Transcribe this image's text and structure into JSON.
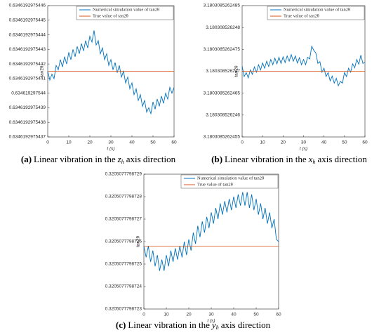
{
  "chart_data": [
    {
      "type": "line",
      "caption": {
        "tag": "(a)",
        "text": "Linear vibration in the",
        "var": "z",
        "sub": "h",
        "rest": "axis direction"
      },
      "xlabel": "t (s)",
      "ylabel": "tan2θ",
      "xlim": [
        0,
        60
      ],
      "xticks": [
        0,
        10,
        20,
        30,
        40,
        50,
        60
      ],
      "ylim": [
        0.6346192975437,
        0.6346192975446
      ],
      "yticks": [
        0.6346192975437,
        0.6346192975438,
        0.6346192975439,
        0.634619297544,
        0.6346192975441,
        0.6346192975442,
        0.6346192975443,
        0.6346192975444,
        0.6346192975445,
        0.6346192975446
      ],
      "legend": "upper right",
      "series": [
        {
          "name": "Numerical simulation value of tan2θ",
          "color": "#0072bd",
          "x": [
            0,
            1,
            2,
            3,
            4,
            5,
            6,
            7,
            8,
            9,
            10,
            11,
            12,
            13,
            14,
            15,
            16,
            17,
            18,
            19,
            20,
            21,
            22,
            23,
            24,
            25,
            26,
            27,
            28,
            29,
            30,
            31,
            32,
            33,
            34,
            35,
            36,
            37,
            38,
            39,
            40,
            41,
            42,
            43,
            44,
            45,
            46,
            47,
            48,
            49,
            50,
            51,
            52,
            53,
            54,
            55,
            56,
            57,
            58,
            59,
            60
          ],
          "values": [
            0.63461929754415,
            0.63461929754409,
            0.63461929754413,
            0.6346192975441,
            0.63461929754419,
            0.63461929754416,
            0.63461929754423,
            0.63461929754418,
            0.63461929754425,
            0.6346192975442,
            0.63461929754428,
            0.63461929754423,
            0.6346192975443,
            0.63461929754425,
            0.63461929754432,
            0.63461929754427,
            0.63461929754434,
            0.63461929754429,
            0.63461929754436,
            0.63461929754431,
            0.63461929754439,
            0.63461929754435,
            0.63461929754443,
            0.63461929754433,
            0.63461929754436,
            0.63461929754427,
            0.63461929754431,
            0.63461929754423,
            0.63461929754427,
            0.63461929754419,
            0.63461929754423,
            0.63461929754416,
            0.63461929754421,
            0.63461929754414,
            0.63461929754419,
            0.63461929754411,
            0.63461929754415,
            0.63461929754407,
            0.63461929754411,
            0.63461929754403,
            0.63461929754407,
            0.63461929754399,
            0.63461929754403,
            0.63461929754395,
            0.63461929754399,
            0.63461929754391,
            0.63461929754395,
            0.63461929754387,
            0.6346192975439,
            0.63461929754386,
            0.63461929754394,
            0.63461929754389,
            0.63461929754396,
            0.63461929754391,
            0.63461929754398,
            0.63461929754393,
            0.634619297544,
            0.63461929754396,
            0.63461929754404,
            0.634619297544,
            0.63461929754404
          ]
        },
        {
          "name": "True value of tan2θ",
          "color": "#d95319",
          "x": [
            0,
            60
          ],
          "values": [
            0.63461929754415,
            0.63461929754415
          ]
        }
      ]
    },
    {
      "type": "line",
      "caption": {
        "tag": "(b)",
        "text": "Linear vibration in the",
        "var": "x",
        "sub": "h",
        "rest": "axis direction"
      },
      "xlabel": "t (s)",
      "ylabel": "tan2θ",
      "xlim": [
        0,
        60
      ],
      "xticks": [
        0,
        10,
        20,
        30,
        40,
        50,
        60
      ],
      "ylim": [
        3.1803085262455,
        3.1803085262485
      ],
      "yticks": [
        3.1803085262455,
        3.180308526246,
        3.1803085262465,
        3.180308526247,
        3.1803085262475,
        3.180308526248,
        3.1803085262485
      ],
      "legend": "upper right",
      "series": [
        {
          "name": "Numerical simulation value of tan2θ",
          "color": "#0072bd",
          "x": [
            0,
            1,
            2,
            3,
            4,
            5,
            6,
            7,
            8,
            9,
            10,
            11,
            12,
            13,
            14,
            15,
            16,
            17,
            18,
            19,
            20,
            21,
            22,
            23,
            24,
            25,
            26,
            27,
            28,
            29,
            30,
            31,
            32,
            33,
            34,
            35,
            36,
            37,
            38,
            39,
            40,
            41,
            42,
            43,
            44,
            45,
            46,
            47,
            48,
            49,
            50,
            51,
            52,
            53,
            54,
            55,
            56,
            57,
            58,
            59,
            60
          ],
          "values": [
            3.18030852624712,
            3.18030852624688,
            3.18030852624697,
            3.18030852624685,
            3.18030852624703,
            3.18030852624693,
            3.1803085262471,
            3.18030852624698,
            3.18030852624715,
            3.18030852624703,
            3.18030852624719,
            3.18030852624707,
            3.18030852624723,
            3.18030852624711,
            3.18030852624727,
            3.18030852624715,
            3.1803085262473,
            3.18030852624717,
            3.18030852624732,
            3.18030852624718,
            3.18030852624733,
            3.1803085262472,
            3.18030852624735,
            3.18030852624723,
            3.18030852624738,
            3.18030852624723,
            3.18030852624735,
            3.18030852624719,
            3.18030852624731,
            3.18030852624715,
            3.18030852624727,
            3.18030852624715,
            3.18030852624732,
            3.18030852624728,
            3.18030852624757,
            3.18030852624748,
            3.18030852624742,
            3.18030852624718,
            3.18030852624722,
            3.18030852624698,
            3.18030852624707,
            3.18030852624688,
            3.18030852624697,
            3.18030852624678,
            3.18030852624689,
            3.18030852624673,
            3.18030852624684,
            3.18030852624667,
            3.18030852624677,
            3.18030852624673,
            3.18030852624697,
            3.18030852624688,
            3.18030852624707,
            3.18030852624698,
            3.18030852624717,
            3.18030852624708,
            3.18030852624727,
            3.18030852624716,
            3.18030852624737,
            3.18030852624718,
            3.1803085262472
          ]
        },
        {
          "name": "True value of tan2θ",
          "color": "#d95319",
          "x": [
            0,
            60
          ],
          "values": [
            3.180308526247,
            3.180308526247
          ]
        }
      ]
    },
    {
      "type": "line",
      "caption": {
        "tag": "(c)",
        "text": "Linear vibration in the",
        "var": "y",
        "sub": "h",
        "rest": "axis direction"
      },
      "xlabel": "t (s)",
      "ylabel": "tan2θ",
      "xlim": [
        0,
        60
      ],
      "xticks": [
        0,
        10,
        20,
        30,
        40,
        50,
        60
      ],
      "ylim": [
        0.3205077798723,
        0.3205077798729
      ],
      "yticks": [
        0.3205077798723,
        0.3205077798724,
        0.3205077798725,
        0.3205077798726,
        0.3205077798727,
        0.3205077798728,
        0.3205077798729
      ],
      "legend": "upper right",
      "series": [
        {
          "name": "Numerical simulation value of tan2θ",
          "color": "#0072bd",
          "x": [
            0,
            1,
            2,
            3,
            4,
            5,
            6,
            7,
            8,
            9,
            10,
            11,
            12,
            13,
            14,
            15,
            16,
            17,
            18,
            19,
            20,
            21,
            22,
            23,
            24,
            25,
            26,
            27,
            28,
            29,
            30,
            31,
            32,
            33,
            34,
            35,
            36,
            37,
            38,
            39,
            40,
            41,
            42,
            43,
            44,
            45,
            46,
            47,
            48,
            49,
            50,
            51,
            52,
            53,
            54,
            55,
            56,
            57,
            58,
            59,
            60
          ],
          "values": [
            0.32050777987258,
            0.32050777987253,
            0.32050777987258,
            0.32050777987251,
            0.32050777987256,
            0.32050777987249,
            0.32050777987254,
            0.32050777987247,
            0.32050777987252,
            0.32050777987247,
            0.32050777987254,
            0.32050777987249,
            0.32050777987256,
            0.32050777987251,
            0.32050777987257,
            0.32050777987252,
            0.32050777987258,
            0.32050777987253,
            0.3205077798726,
            0.32050777987254,
            0.32050777987261,
            0.32050777987256,
            0.32050777987264,
            0.32050777987259,
            0.32050777987267,
            0.32050777987262,
            0.32050777987269,
            0.32050777987264,
            0.32050777987271,
            0.32050777987266,
            0.32050777987273,
            0.32050777987268,
            0.32050777987275,
            0.3205077798727,
            0.32050777987277,
            0.32050777987272,
            0.32050777987278,
            0.32050777987273,
            0.32050777987279,
            0.32050777987274,
            0.3205077798728,
            0.32050777987275,
            0.32050777987281,
            0.32050777987276,
            0.32050777987282,
            0.32050777987276,
            0.32050777987282,
            0.32050777987275,
            0.32050777987281,
            0.32050777987274,
            0.32050777987279,
            0.32050777987272,
            0.32050777987277,
            0.3205077798727,
            0.32050777987275,
            0.32050777987268,
            0.32050777987273,
            0.32050777987266,
            0.3205077798727,
            0.32050777987261,
            0.3205077798726
          ]
        },
        {
          "name": "True value of tan2θ",
          "color": "#d95319",
          "x": [
            0,
            60
          ],
          "values": [
            0.32050777987258,
            0.32050777987258
          ]
        }
      ]
    }
  ]
}
